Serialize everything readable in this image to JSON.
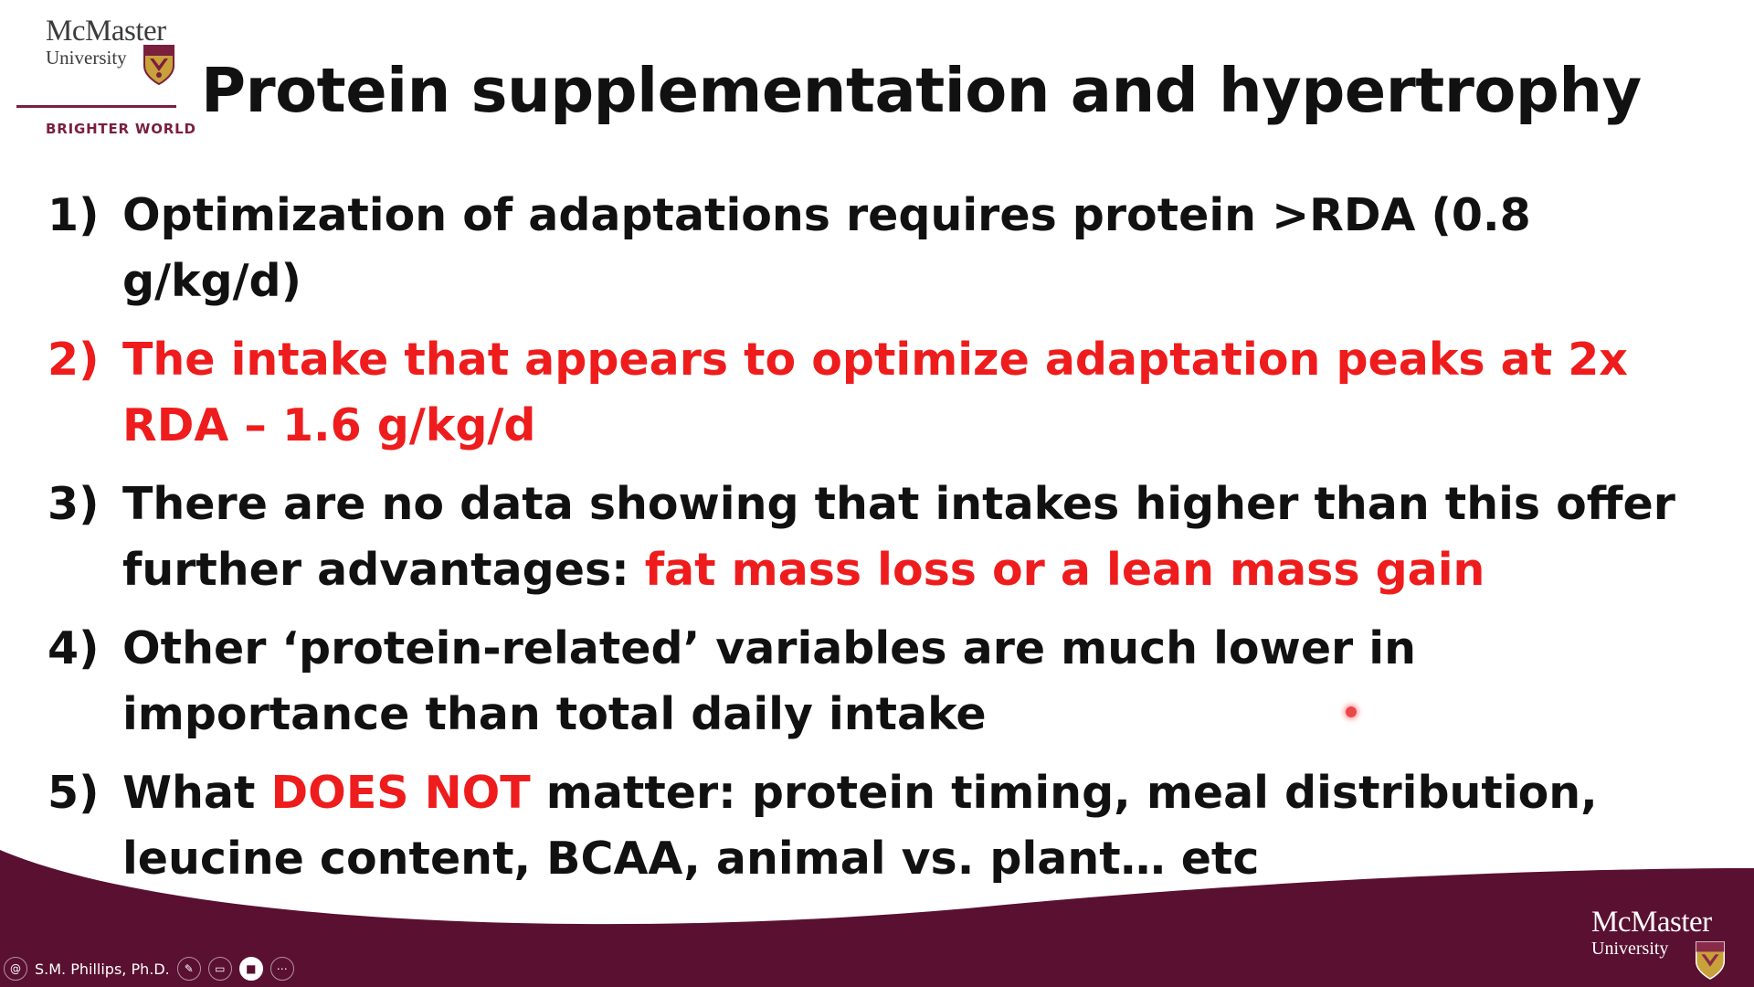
{
  "logo": {
    "name": "McMaster",
    "sub": "University",
    "tagline": "BRIGHTER WORLD"
  },
  "title": "Protein supplementation and hypertrophy",
  "points": [
    {
      "num": "1)",
      "segments": [
        {
          "text": "Optimization of adaptations requires protein >RDA (0.8 g/kg/d)",
          "color": "black"
        }
      ]
    },
    {
      "num": "2)",
      "segments": [
        {
          "text": "The intake that appears to optimize adaptation peaks at 2x RDA – 1.6 g/kg/d",
          "color": "red"
        }
      ]
    },
    {
      "num": "3)",
      "segments": [
        {
          "text": "There are no data showing that intakes higher than this offer further advantages: ",
          "color": "black"
        },
        {
          "text": "fat mass loss or a lean mass gain",
          "color": "red"
        }
      ]
    },
    {
      "num": "4)",
      "segments": [
        {
          "text": "Other ‘protein-related’ variables are much lower in importance than total daily intake",
          "color": "black"
        }
      ]
    },
    {
      "num": "5)",
      "segments": [
        {
          "text": "What ",
          "color": "black"
        },
        {
          "text": "DOES NOT",
          "color": "red"
        },
        {
          "text": " matter: protein timing, meal distribution, leucine content, BCAA, animal vs. plant… etc",
          "color": "black"
        }
      ]
    }
  ],
  "footer_logo": {
    "name": "McMaster",
    "sub": "University"
  },
  "presenter": {
    "name": "S.M. Phillips, Ph.D."
  },
  "colors": {
    "maroon": "#5a1030",
    "accent_red": "#ee1c1c",
    "text": "#111111"
  }
}
